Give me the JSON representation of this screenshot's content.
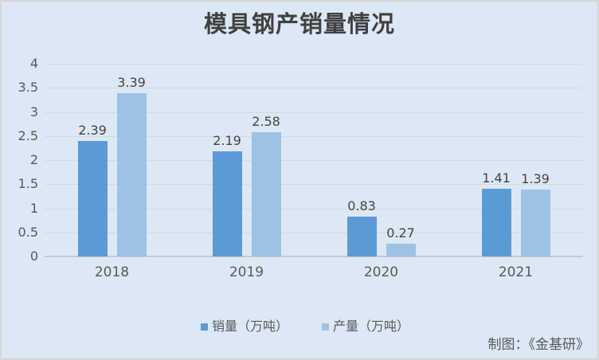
{
  "page": {
    "background": "#dce8f5",
    "border_color": "#d6d6d6"
  },
  "chart_data": {
    "type": "bar",
    "title": "模具钢产销量情况",
    "categories": [
      "2018",
      "2019",
      "2020",
      "2021"
    ],
    "series": [
      {
        "name": "销量（万吨）",
        "color": "#5b9bd5",
        "values": [
          2.39,
          2.19,
          0.83,
          1.41
        ]
      },
      {
        "name": "产量（万吨）",
        "color": "#9cc3e6",
        "values": [
          3.39,
          2.58,
          0.27,
          1.39
        ]
      }
    ],
    "data_labels": [
      "2.39",
      "3.39",
      "2.19",
      "2.58",
      "0.83",
      "0.27",
      "1.41",
      "1.39"
    ],
    "ylim": [
      0,
      4
    ],
    "ytick_labels": [
      "4",
      "3.5",
      "3",
      "2.5",
      "2",
      "1.5",
      "1",
      "0.5",
      "0"
    ],
    "grid": true,
    "legend_position": "bottom-center",
    "source_note": "制图：《金基研》",
    "colors": {
      "grid": "#d8d8d8",
      "axis_text": "#595959",
      "data_label_text": "#444444",
      "title_text": "#404040"
    }
  }
}
